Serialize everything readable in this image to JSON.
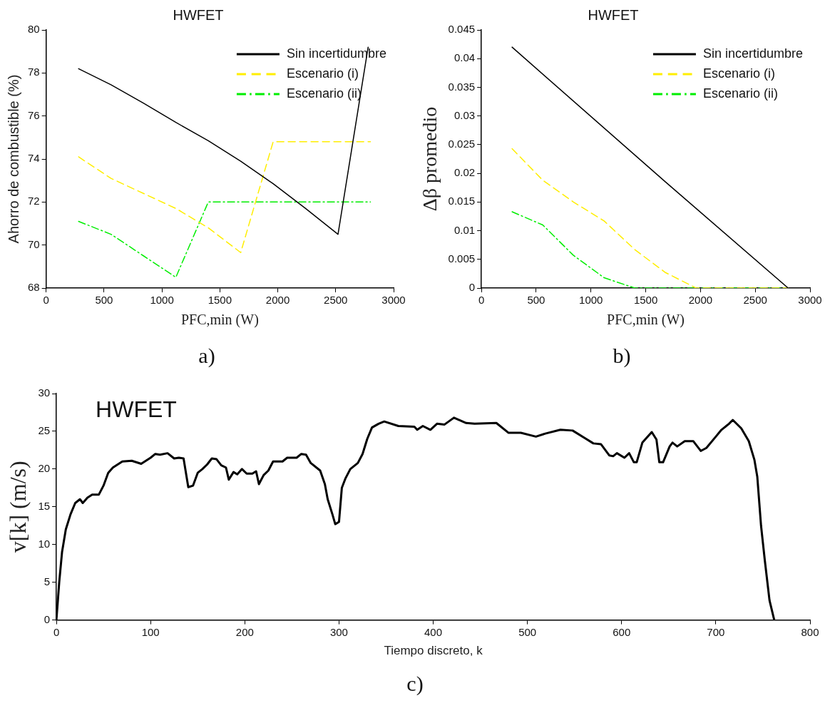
{
  "chart_data": [
    {
      "type": "line",
      "title": "HWFET",
      "xlabel": "PFC,min (W)",
      "ylabel": "Ahorro de combustible (%)",
      "x": [
        280,
        560,
        840,
        1120,
        1400,
        1680,
        1960,
        2240,
        2520,
        2780
      ],
      "xlim": [
        0,
        3000
      ],
      "xticks": [
        0,
        500,
        1000,
        1500,
        2000,
        2500,
        3000
      ],
      "ylim": [
        68,
        80
      ],
      "yticks": [
        68,
        70,
        72,
        74,
        76,
        78,
        80
      ],
      "legend": "top right",
      "annotations": [
        "a)"
      ],
      "series": [
        {
          "name": "Sin incertidumbre",
          "color": "#000000",
          "line_style": "solid",
          "values": [
            78.2,
            77.45,
            76.6,
            75.7,
            74.85,
            73.9,
            72.85,
            71.7,
            70.5,
            79.2
          ]
        },
        {
          "name": "Escenario (i)",
          "color": "#ffee00",
          "line_style": "dashed",
          "x": [
            280,
            560,
            840,
            1120,
            1400,
            1680,
            1960,
            2800
          ],
          "values": [
            74.1,
            73.1,
            72.4,
            71.7,
            70.8,
            69.65,
            74.8,
            74.8
          ]
        },
        {
          "name": "Escenario (ii)",
          "color": "#00ee00",
          "line_style": "dashdot",
          "x": [
            280,
            560,
            840,
            1120,
            1400,
            2800
          ],
          "values": [
            71.1,
            70.5,
            69.5,
            68.5,
            72.0,
            72.0
          ]
        }
      ]
    },
    {
      "type": "line",
      "title": "HWFET",
      "xlabel": "PFC,min (W)",
      "ylabel": "Δβ promedio",
      "xlim": [
        0,
        3000
      ],
      "xticks": [
        0,
        500,
        1000,
        1500,
        2000,
        2500,
        3000
      ],
      "ylim": [
        0,
        0.045
      ],
      "yticks": [
        0,
        0.005,
        0.01,
        0.015,
        0.02,
        0.025,
        0.03,
        0.035,
        0.04,
        0.045
      ],
      "legend": "top right",
      "annotations": [
        "b)"
      ],
      "series": [
        {
          "name": "Sin incertidumbre",
          "color": "#000000",
          "line_style": "solid",
          "x": [
            280,
            1680,
            2800
          ],
          "values": [
            0.042,
            0.0185,
            0
          ]
        },
        {
          "name": "Escenario (i)",
          "color": "#ffee00",
          "line_style": "dashed",
          "x": [
            280,
            560,
            840,
            1120,
            1400,
            1680,
            1960,
            2800
          ],
          "values": [
            0.0243,
            0.0188,
            0.015,
            0.0117,
            0.0067,
            0.0027,
            0,
            0
          ]
        },
        {
          "name": "Escenario (ii)",
          "color": "#00ee00",
          "line_style": "dashdot",
          "x": [
            280,
            560,
            840,
            1120,
            1400,
            2800
          ],
          "values": [
            0.0133,
            0.011,
            0.0057,
            0.0018,
            0,
            0
          ]
        }
      ]
    },
    {
      "type": "line",
      "title": "HWFET",
      "xlabel": "Tiempo discreto, k",
      "ylabel": "v[k] (m/s)",
      "xlim": [
        0,
        800
      ],
      "xticks": [
        0,
        100,
        200,
        300,
        400,
        500,
        600,
        700,
        800
      ],
      "ylim": [
        0,
        30
      ],
      "yticks": [
        0,
        5,
        10,
        15,
        20,
        25,
        30
      ],
      "annotations": [
        "c)"
      ],
      "series": [
        {
          "color": "#000000",
          "line_style": "solid",
          "x": [
            0,
            3,
            6,
            10,
            15,
            20,
            25,
            28,
            33,
            38,
            45,
            50,
            55,
            60,
            65,
            70,
            80,
            90,
            100,
            105,
            110,
            118,
            125,
            130,
            135,
            140,
            145,
            150,
            155,
            160,
            165,
            170,
            175,
            180,
            183,
            188,
            192,
            197,
            202,
            208,
            212,
            215,
            220,
            225,
            230,
            240,
            245,
            255,
            260,
            265,
            270,
            280,
            285,
            288,
            293,
            296,
            300,
            303,
            307,
            312,
            320,
            325,
            330,
            335,
            342,
            348,
            363,
            380,
            383,
            389,
            397,
            404,
            412,
            422,
            435,
            444,
            467,
            480,
            493,
            509,
            519,
            535,
            548,
            561,
            570,
            578,
            587,
            591,
            595,
            603,
            608,
            613,
            616,
            622,
            632,
            637,
            640,
            644,
            651,
            654,
            659,
            667,
            676,
            684,
            690,
            700,
            706,
            714,
            718,
            727,
            735,
            741,
            744,
            748,
            752,
            757,
            762
          ],
          "values": [
            0,
            5,
            9,
            12,
            14,
            15.5,
            16,
            15.5,
            16.2,
            16.6,
            16.6,
            17.8,
            19.5,
            20.2,
            20.6,
            21,
            21.1,
            20.7,
            21.5,
            22,
            21.9,
            22.1,
            21.4,
            21.5,
            21.4,
            17.6,
            17.8,
            19.5,
            20,
            20.6,
            21.4,
            21.3,
            20.5,
            20.2,
            18.6,
            19.6,
            19.3,
            20,
            19.4,
            19.4,
            19.7,
            18,
            19.2,
            19.8,
            21,
            21,
            21.5,
            21.5,
            22,
            21.9,
            20.8,
            19.8,
            18,
            16,
            14,
            12.7,
            13,
            17.5,
            18.8,
            20,
            20.8,
            22,
            24,
            25.5,
            26,
            26.3,
            25.7,
            25.6,
            25.2,
            25.7,
            25.2,
            26,
            25.9,
            26.8,
            26.1,
            26,
            26.1,
            24.8,
            24.8,
            24.3,
            24.7,
            25.2,
            25.1,
            24.1,
            23.4,
            23.3,
            21.8,
            21.7,
            22.1,
            21.5,
            22.1,
            20.9,
            20.9,
            23.5,
            24.9,
            23.9,
            20.9,
            20.9,
            23,
            23.5,
            23,
            23.7,
            23.7,
            22.4,
            22.8,
            24.3,
            25.2,
            26,
            26.5,
            25.4,
            23.7,
            21.2,
            19,
            12.5,
            7.9,
            2.6,
            0
          ]
        }
      ]
    }
  ]
}
